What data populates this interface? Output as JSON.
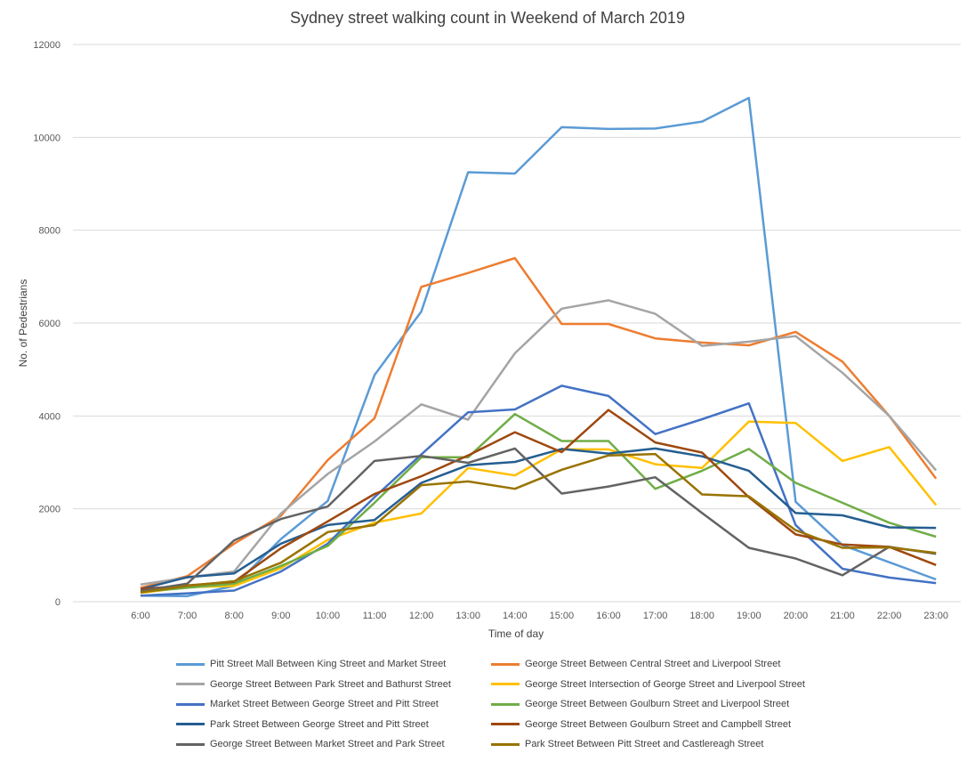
{
  "chart_data": {
    "type": "line",
    "title": "Sydney street walking count in Weekend of March 2019",
    "xlabel": "Time of day",
    "ylabel": "No. of Pedestrians",
    "ylim": [
      0,
      12000
    ],
    "yticks": [
      0,
      2000,
      4000,
      6000,
      8000,
      10000,
      12000
    ],
    "grid": "horizontal",
    "legend_position": "bottom",
    "categories": [
      "6:00",
      "7:00",
      "8:00",
      "9:00",
      "10:00",
      "11:00",
      "12:00",
      "13:00",
      "14:00",
      "15:00",
      "16:00",
      "17:00",
      "18:00",
      "19:00",
      "20:00",
      "21:00",
      "22:00",
      "23:00"
    ],
    "series": [
      {
        "name": "Pitt Street Mall Between King Street and Market Street",
        "color": "#5B9BD5",
        "values": [
          130,
          120,
          340,
          1350,
          2170,
          4880,
          6250,
          9250,
          9220,
          10220,
          10180,
          10190,
          10340,
          10850,
          2150,
          1220,
          850,
          480
        ]
      },
      {
        "name": "George Street Between Central Street and Liverpool Street",
        "color": "#ED7D31",
        "values": [
          300,
          550,
          1250,
          1850,
          3050,
          3950,
          6780,
          7080,
          7400,
          5980,
          5980,
          5670,
          5580,
          5520,
          5810,
          5170,
          4000,
          2650
        ]
      },
      {
        "name": "George Street Between Park Street and Bathurst Street",
        "color": "#A5A5A5",
        "values": [
          370,
          520,
          650,
          1900,
          2750,
          3450,
          4250,
          3920,
          5350,
          6310,
          6490,
          6200,
          5510,
          5600,
          5720,
          4930,
          4000,
          2830
        ]
      },
      {
        "name": "George Street Intersection of George Street and Liverpool Street",
        "color": "#FFC000",
        "values": [
          190,
          310,
          340,
          720,
          1330,
          1700,
          1900,
          2880,
          2720,
          3280,
          3280,
          2960,
          2880,
          3880,
          3850,
          3030,
          3330,
          2080
        ]
      },
      {
        "name": "Market Street Between George Street and Pitt Street",
        "color": "#4472C4",
        "values": [
          130,
          180,
          240,
          650,
          1250,
          2250,
          3170,
          4080,
          4140,
          4650,
          4430,
          3610,
          3930,
          4270,
          1650,
          710,
          520,
          400
        ]
      },
      {
        "name": "George Street Between Goulburn Street and Liverpool Street",
        "color": "#70AD47",
        "values": [
          210,
          300,
          390,
          770,
          1200,
          2130,
          3110,
          3110,
          4040,
          3460,
          3460,
          2430,
          2820,
          3290,
          2560,
          2130,
          1700,
          1400
        ]
      },
      {
        "name": "Park Street Between George Street and Pitt Street",
        "color": "#255E91",
        "values": [
          270,
          530,
          610,
          1250,
          1650,
          1760,
          2560,
          2940,
          3010,
          3290,
          3190,
          3300,
          3130,
          2820,
          1910,
          1860,
          1600,
          1590
        ]
      },
      {
        "name": "George Street Between Goulburn Street and Campbell Street",
        "color": "#9E480E",
        "values": [
          270,
          350,
          430,
          1150,
          1730,
          2320,
          2700,
          3150,
          3650,
          3220,
          4130,
          3430,
          3210,
          2250,
          1450,
          1230,
          1180,
          790
        ]
      },
      {
        "name": "George Street Between Market Street and Park Street",
        "color": "#636363",
        "values": [
          230,
          390,
          1320,
          1780,
          2050,
          3030,
          3140,
          2990,
          3300,
          2330,
          2480,
          2680,
          1910,
          1160,
          930,
          570,
          1180,
          1030
        ]
      },
      {
        "name": "Park Street Between Pitt Street and Castlereagh Street",
        "color": "#997300",
        "values": [
          200,
          340,
          440,
          840,
          1500,
          1650,
          2510,
          2590,
          2430,
          2840,
          3150,
          3180,
          2310,
          2270,
          1540,
          1160,
          1170,
          1050
        ]
      }
    ]
  }
}
